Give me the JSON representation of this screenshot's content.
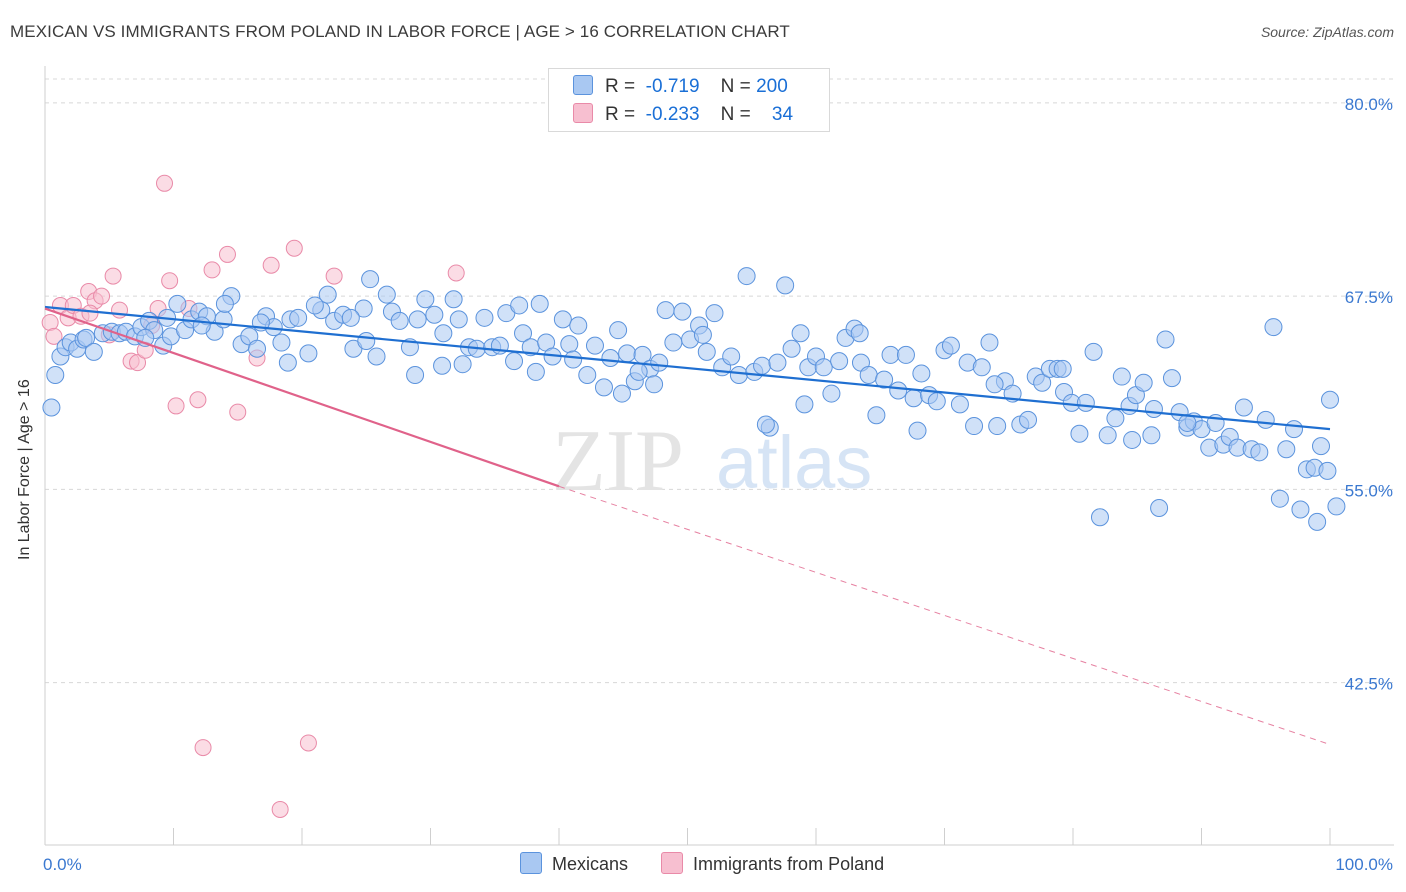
{
  "title": "MEXICAN VS IMMIGRANTS FROM POLAND IN LABOR FORCE | AGE > 16 CORRELATION CHART",
  "source": "Source: ZipAtlas.com",
  "watermark": {
    "zip": "ZIP",
    "atlas": "atlas"
  },
  "legend_top": {
    "rows": [
      {
        "r_label": "R =",
        "r_value": "-0.719",
        "n_label": "N =",
        "n_value": "200"
      },
      {
        "r_label": "R =",
        "r_value": "-0.233",
        "n_label": "N =",
        "n_value": "34"
      }
    ]
  },
  "colors": {
    "blue_fill": "#a9c8f2",
    "blue_stroke": "#5b93dd",
    "blue_line": "#1f6fd1",
    "pink_fill": "#f7bfd0",
    "pink_stroke": "#e98aa8",
    "pink_line": "#e0628a",
    "grid": "#d8d8d8",
    "tick_label": "#3a78d0"
  },
  "chart_data": {
    "type": "scatter",
    "title": "MEXICAN VS IMMIGRANTS FROM POLAND IN LABOR FORCE | AGE > 16 CORRELATION CHART",
    "xlabel": "",
    "ylabel": "In Labor Force | Age > 16",
    "xlim": [
      0,
      100
    ],
    "ylim": [
      32,
      82
    ],
    "x_tick_labels": [
      "0.0%",
      "100.0%"
    ],
    "y_ticks": [
      42.5,
      55.0,
      67.5,
      80.0
    ],
    "y_tick_labels": [
      "42.5%",
      "55.0%",
      "67.5%",
      "80.0%"
    ],
    "grid": true,
    "legend_position": "bottom",
    "series": [
      {
        "name": "Mexicans",
        "trend": {
          "x": [
            0,
            100
          ],
          "y": [
            66.8,
            58.9
          ],
          "style": "solid"
        },
        "points": [
          [
            0.5,
            60.3
          ],
          [
            0.8,
            62.4
          ],
          [
            1.2,
            63.6
          ],
          [
            1.6,
            64.2
          ],
          [
            2,
            64.5
          ],
          [
            2.5,
            64.1
          ],
          [
            3,
            64.7
          ],
          [
            3.2,
            64.8
          ],
          [
            3.8,
            63.9
          ],
          [
            4.5,
            65.1
          ],
          [
            5.2,
            65.2
          ],
          [
            5.8,
            65.1
          ],
          [
            6.3,
            65.2
          ],
          [
            7,
            64.9
          ],
          [
            7.5,
            65.5
          ],
          [
            8.1,
            65.9
          ],
          [
            8.5,
            65.3
          ],
          [
            9.2,
            64.3
          ],
          [
            9.8,
            64.9
          ],
          [
            10.3,
            67.0
          ],
          [
            10.9,
            65.3
          ],
          [
            11.4,
            66.0
          ],
          [
            12,
            66.5
          ],
          [
            12.6,
            66.2
          ],
          [
            13.2,
            65.2
          ],
          [
            13.9,
            66.0
          ],
          [
            14.5,
            67.5
          ],
          [
            15.3,
            64.4
          ],
          [
            15.9,
            64.9
          ],
          [
            16.5,
            64.1
          ],
          [
            17.2,
            66.2
          ],
          [
            17.8,
            65.5
          ],
          [
            18.4,
            64.5
          ],
          [
            19.1,
            66.0
          ],
          [
            19.7,
            66.1
          ],
          [
            20.5,
            63.8
          ],
          [
            21.5,
            66.6
          ],
          [
            22.0,
            67.6
          ],
          [
            22.5,
            65.9
          ],
          [
            23.2,
            66.3
          ],
          [
            24.0,
            64.1
          ],
          [
            24.8,
            66.7
          ],
          [
            25.3,
            68.6
          ],
          [
            25.8,
            63.6
          ],
          [
            26.6,
            67.6
          ],
          [
            27.0,
            66.5
          ],
          [
            27.6,
            65.9
          ],
          [
            28.4,
            64.2
          ],
          [
            29.0,
            66.0
          ],
          [
            29.6,
            67.3
          ],
          [
            30.3,
            66.3
          ],
          [
            31.0,
            65.1
          ],
          [
            31.8,
            67.3
          ],
          [
            32.5,
            63.1
          ],
          [
            33.0,
            64.2
          ],
          [
            33.6,
            64.1
          ],
          [
            34.2,
            66.1
          ],
          [
            34.8,
            64.2
          ],
          [
            35.4,
            64.3
          ],
          [
            35.9,
            66.4
          ],
          [
            36.5,
            63.3
          ],
          [
            37.2,
            65.1
          ],
          [
            37.8,
            64.2
          ],
          [
            38.5,
            67.0
          ],
          [
            39.0,
            64.5
          ],
          [
            39.5,
            63.6
          ],
          [
            40.3,
            66.0
          ],
          [
            40.8,
            64.4
          ],
          [
            41.5,
            65.6
          ],
          [
            42.2,
            62.4
          ],
          [
            42.8,
            64.3
          ],
          [
            43.5,
            61.6
          ],
          [
            44.0,
            63.5
          ],
          [
            44.6,
            65.3
          ],
          [
            45.3,
            63.8
          ],
          [
            45.9,
            62.0
          ],
          [
            46.5,
            63.7
          ],
          [
            47.1,
            62.8
          ],
          [
            47.8,
            63.2
          ],
          [
            48.3,
            66.6
          ],
          [
            48.9,
            64.5
          ],
          [
            49.6,
            66.5
          ],
          [
            50.2,
            64.7
          ],
          [
            50.9,
            65.6
          ],
          [
            51.5,
            63.9
          ],
          [
            52.1,
            66.4
          ],
          [
            52.7,
            62.9
          ],
          [
            53.4,
            63.6
          ],
          [
            54.0,
            62.4
          ],
          [
            54.6,
            68.8
          ],
          [
            55.2,
            62.6
          ],
          [
            55.8,
            63.0
          ],
          [
            56.4,
            59.0
          ],
          [
            57.0,
            63.2
          ],
          [
            57.6,
            68.2
          ],
          [
            58.1,
            64.1
          ],
          [
            58.8,
            65.1
          ],
          [
            59.4,
            62.9
          ],
          [
            60.0,
            63.6
          ],
          [
            60.6,
            62.9
          ],
          [
            61.2,
            61.2
          ],
          [
            61.8,
            63.3
          ],
          [
            62.3,
            64.8
          ],
          [
            63.0,
            65.4
          ],
          [
            63.5,
            63.2
          ],
          [
            64.1,
            62.4
          ],
          [
            64.7,
            59.8
          ],
          [
            65.3,
            62.1
          ],
          [
            65.8,
            63.7
          ],
          [
            66.4,
            61.4
          ],
          [
            67.0,
            63.7
          ],
          [
            67.6,
            60.9
          ],
          [
            68.2,
            62.5
          ],
          [
            68.8,
            61.1
          ],
          [
            69.4,
            60.7
          ],
          [
            70.0,
            64.0
          ],
          [
            70.5,
            64.3
          ],
          [
            71.2,
            60.5
          ],
          [
            71.8,
            63.2
          ],
          [
            72.3,
            59.1
          ],
          [
            72.9,
            62.9
          ],
          [
            73.5,
            64.5
          ],
          [
            74.1,
            59.1
          ],
          [
            74.7,
            62.0
          ],
          [
            75.3,
            61.2
          ],
          [
            75.9,
            59.2
          ],
          [
            76.5,
            59.5
          ],
          [
            77.1,
            62.3
          ],
          [
            77.6,
            61.9
          ],
          [
            78.2,
            62.8
          ],
          [
            78.8,
            62.8
          ],
          [
            79.3,
            61.3
          ],
          [
            79.9,
            60.6
          ],
          [
            80.5,
            58.6
          ],
          [
            81.0,
            60.6
          ],
          [
            81.6,
            63.9
          ],
          [
            82.1,
            53.2
          ],
          [
            82.7,
            58.5
          ],
          [
            83.3,
            59.6
          ],
          [
            83.8,
            62.3
          ],
          [
            84.4,
            60.4
          ],
          [
            84.9,
            61.1
          ],
          [
            85.5,
            61.9
          ],
          [
            86.1,
            58.5
          ],
          [
            86.7,
            53.8
          ],
          [
            87.2,
            64.7
          ],
          [
            87.7,
            62.2
          ],
          [
            88.3,
            60.0
          ],
          [
            88.9,
            59.0
          ],
          [
            89.4,
            59.4
          ],
          [
            90.0,
            58.9
          ],
          [
            90.6,
            57.7
          ],
          [
            91.1,
            59.3
          ],
          [
            91.7,
            57.9
          ],
          [
            92.2,
            58.4
          ],
          [
            92.8,
            57.7
          ],
          [
            93.3,
            60.3
          ],
          [
            93.9,
            57.6
          ],
          [
            94.5,
            57.4
          ],
          [
            95.0,
            59.5
          ],
          [
            95.6,
            65.5
          ],
          [
            96.1,
            54.4
          ],
          [
            96.6,
            57.6
          ],
          [
            97.2,
            58.9
          ],
          [
            97.7,
            53.7
          ],
          [
            98.2,
            56.3
          ],
          [
            98.8,
            56.4
          ],
          [
            99.3,
            57.8
          ],
          [
            99.8,
            56.2
          ],
          [
            100.0,
            60.8
          ],
          [
            100.5,
            53.9
          ],
          [
            99.0,
            52.9
          ],
          [
            88.9,
            59.3
          ],
          [
            86.3,
            60.2
          ],
          [
            84.6,
            58.2
          ],
          [
            79.2,
            62.8
          ],
          [
            73.9,
            61.8
          ],
          [
            67.9,
            58.8
          ],
          [
            63.4,
            65.1
          ],
          [
            59.1,
            60.5
          ],
          [
            56.1,
            59.2
          ],
          [
            51.2,
            65.0
          ],
          [
            47.4,
            61.8
          ],
          [
            46.2,
            62.6
          ],
          [
            44.9,
            61.2
          ],
          [
            41.1,
            63.4
          ],
          [
            38.2,
            62.6
          ],
          [
            36.9,
            66.9
          ],
          [
            32.2,
            66.0
          ],
          [
            30.9,
            63.0
          ],
          [
            28.8,
            62.4
          ],
          [
            25.0,
            64.6
          ],
          [
            23.8,
            66.1
          ],
          [
            21.0,
            66.9
          ],
          [
            18.9,
            63.2
          ],
          [
            16.8,
            65.8
          ],
          [
            14.0,
            67.0
          ],
          [
            12.2,
            65.6
          ],
          [
            9.5,
            66.1
          ],
          [
            7.8,
            64.8
          ]
        ]
      },
      {
        "name": "Immigrants from Poland",
        "trend": {
          "x": [
            0,
            40
          ],
          "y": [
            66.7,
            55.2
          ],
          "style": "solid",
          "extended_x": [
            40,
            100
          ],
          "extended_y": [
            55.2,
            38.5
          ],
          "extended_style": "dashed"
        },
        "points": [
          [
            0.4,
            65.8
          ],
          [
            0.7,
            64.9
          ],
          [
            1.2,
            66.9
          ],
          [
            1.8,
            66.1
          ],
          [
            2.2,
            66.9
          ],
          [
            2.8,
            66.2
          ],
          [
            3.4,
            67.8
          ],
          [
            3.9,
            67.2
          ],
          [
            4.4,
            67.5
          ],
          [
            5.3,
            68.8
          ],
          [
            5.8,
            66.6
          ],
          [
            6.7,
            63.3
          ],
          [
            7.2,
            63.2
          ],
          [
            7.8,
            64.0
          ],
          [
            8.3,
            65.6
          ],
          [
            8.8,
            66.7
          ],
          [
            9.3,
            74.8
          ],
          [
            9.7,
            68.5
          ],
          [
            10.2,
            60.4
          ],
          [
            11.2,
            66.7
          ],
          [
            11.9,
            60.8
          ],
          [
            12.3,
            38.3
          ],
          [
            13.0,
            69.2
          ],
          [
            14.2,
            70.2
          ],
          [
            15.0,
            60.0
          ],
          [
            16.5,
            63.5
          ],
          [
            17.6,
            69.5
          ],
          [
            18.3,
            34.3
          ],
          [
            19.4,
            70.6
          ],
          [
            20.5,
            38.6
          ],
          [
            22.5,
            68.8
          ],
          [
            32.0,
            69.0
          ],
          [
            3.5,
            66.4
          ],
          [
            5.0,
            65.0
          ]
        ]
      }
    ]
  }
}
